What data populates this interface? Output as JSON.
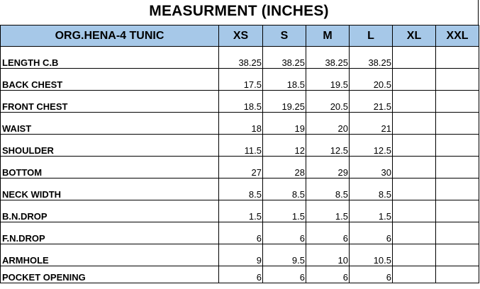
{
  "title": "MEASURMENT (INCHES)",
  "header": {
    "style_name": "ORG.HENA-4 TUNIC",
    "sizes": [
      "XS",
      "S",
      "M",
      "L",
      "XL",
      "XXL"
    ]
  },
  "rows": [
    {
      "label": "LENGTH C.B",
      "values": [
        "38.25",
        "38.25",
        "38.25",
        "38.25",
        "",
        ""
      ]
    },
    {
      "label": "BACK CHEST",
      "values": [
        "17.5",
        "18.5",
        "19.5",
        "20.5",
        "",
        ""
      ]
    },
    {
      "label": "FRONT CHEST",
      "values": [
        "18.5",
        "19.25",
        "20.5",
        "21.5",
        "",
        ""
      ]
    },
    {
      "label": "WAIST",
      "values": [
        "18",
        "19",
        "20",
        "21",
        "",
        ""
      ]
    },
    {
      "label": "SHOULDER",
      "values": [
        "11.5",
        "12",
        "12.5",
        "12.5",
        "",
        ""
      ]
    },
    {
      "label": "BOTTOM",
      "values": [
        "27",
        "28",
        "29",
        "30",
        "",
        ""
      ]
    },
    {
      "label": "NECK WIDTH",
      "values": [
        "8.5",
        "8.5",
        "8.5",
        "8.5",
        "",
        ""
      ]
    },
    {
      "label": "B.N.DROP",
      "values": [
        "1.5",
        "1.5",
        "1.5",
        "1.5",
        "",
        ""
      ]
    },
    {
      "label": "F.N.DROP",
      "values": [
        "6",
        "6",
        "6",
        "6",
        "",
        ""
      ]
    },
    {
      "label": "ARMHOLE",
      "values": [
        "9",
        "9.5",
        "10",
        "10.5",
        "",
        ""
      ]
    },
    {
      "label": "POCKET OPENING",
      "values": [
        "6",
        "6",
        "6",
        "6",
        "",
        ""
      ]
    }
  ],
  "colors": {
    "header_fill": "#a6c8e8",
    "grid_line": "#000000"
  }
}
